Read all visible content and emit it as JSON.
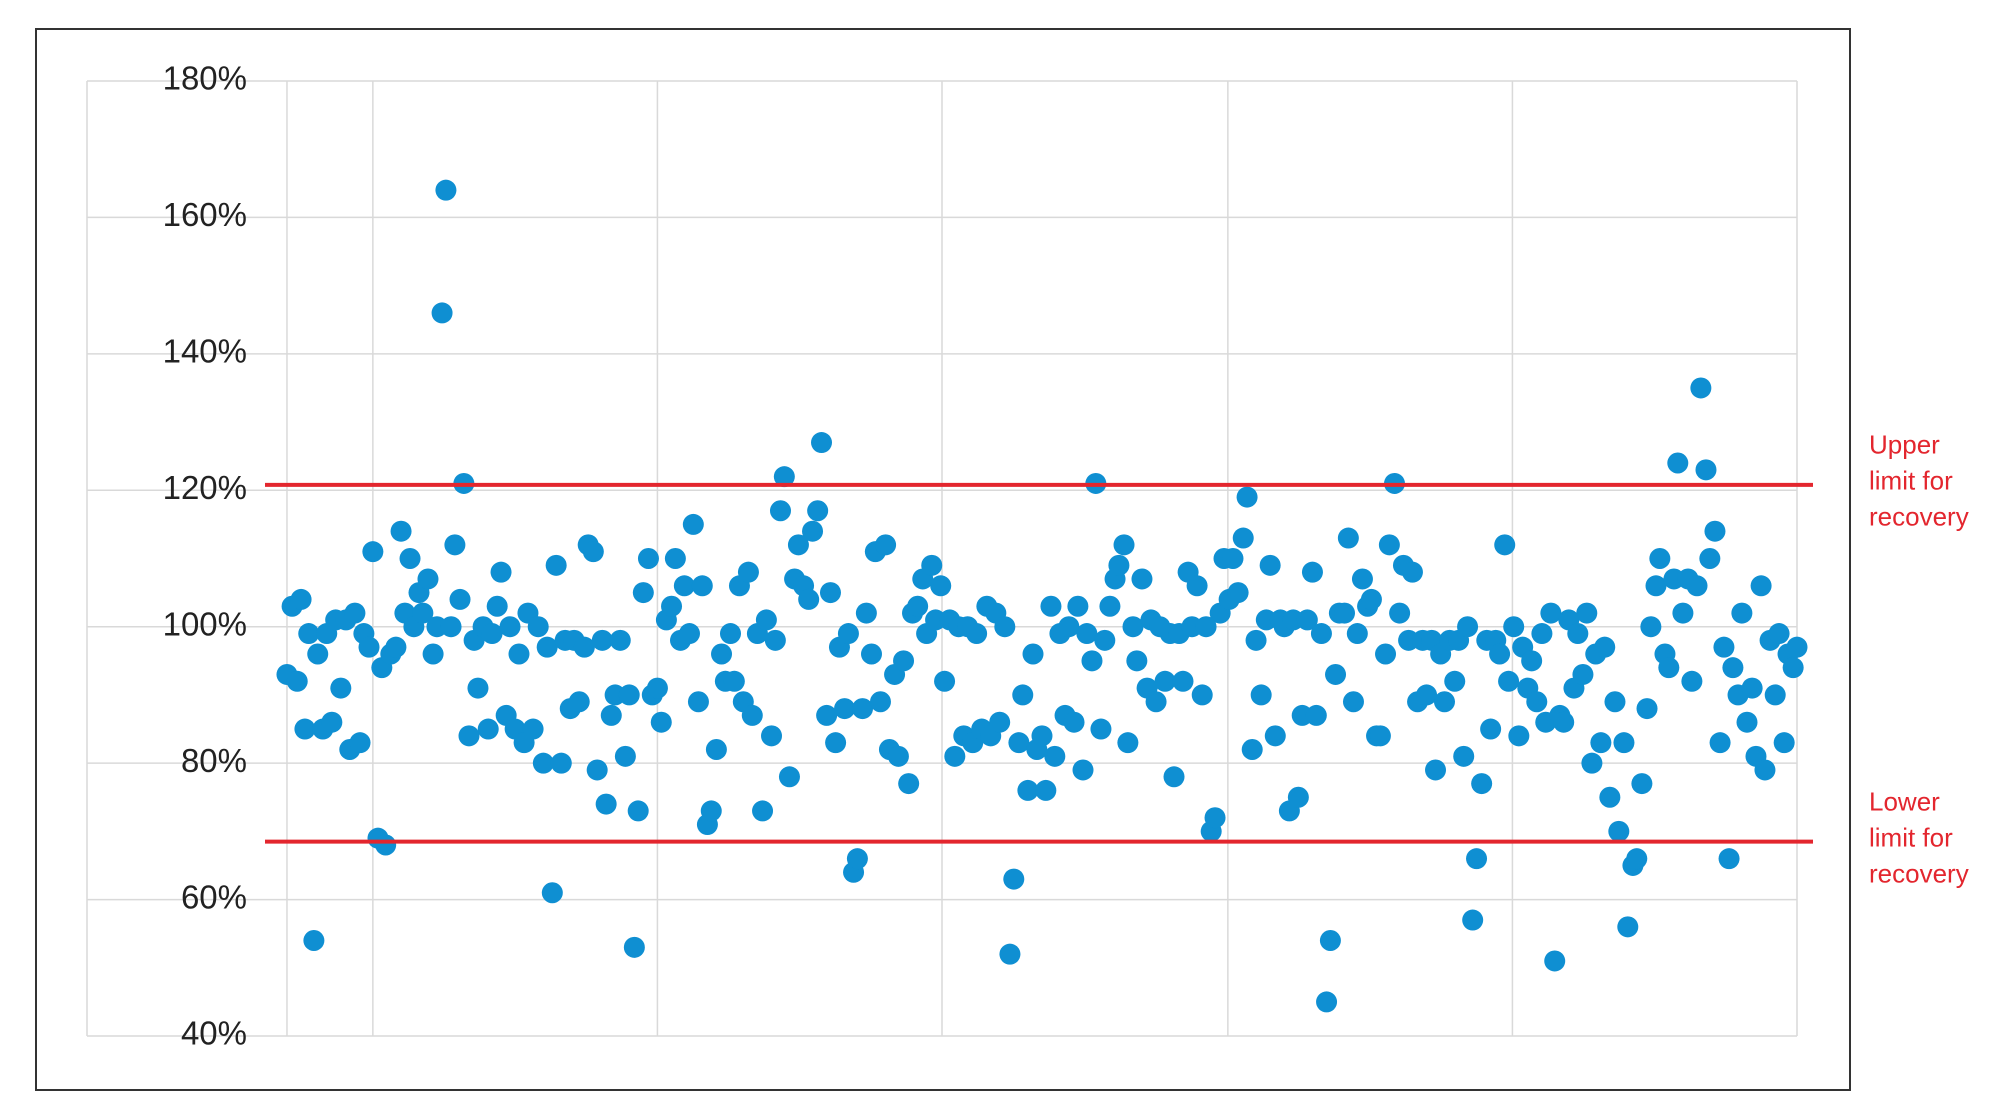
{
  "chart_data": {
    "type": "scatter",
    "series": [
      {
        "color": "#0f8fd2",
        "x": [
          224,
          228,
          232,
          235,
          238,
          241,
          245,
          248,
          252,
          255,
          259,
          262,
          266,
          270,
          273,
          277,
          281,
          284,
          288,
          291,
          295,
          298,
          301,
          305,
          309,
          313,
          316,
          320,
          323,
          327,
          330,
          334,
          338,
          341,
          345,
          348,
          352,
          355,
          359,
          362,
          366,
          370,
          373,
          377,
          381,
          384,
          388,
          391,
          395,
          398,
          402,
          405,
          409,
          412,
          416,
          420,
          424,
          427,
          431,
          434,
          438,
          441,
          445,
          448,
          452,
          456,
          459,
          463,
          466,
          470,
          473,
          477,
          480,
          484,
          488,
          491,
          495,
          498,
          502,
          506,
          509,
          513,
          516,
          520,
          524,
          527,
          531,
          534,
          538,
          541,
          545,
          548,
          552,
          555,
          559,
          563,
          566,
          570,
          573,
          577,
          580,
          584,
          587,
          591,
          595,
          598,
          602,
          605,
          609,
          612,
          616,
          620,
          623,
          627,
          631,
          634,
          638,
          641,
          645,
          648,
          652,
          655,
          659,
          662,
          666,
          669,
          673,
          676,
          680,
          683,
          687,
          691,
          694,
          698,
          701,
          705,
          709,
          712,
          716,
          720,
          723,
          727,
          730,
          734,
          737,
          741,
          745,
          748,
          752,
          755,
          759,
          762,
          766,
          770,
          773,
          777,
          780,
          784,
          788,
          791,
          795,
          798,
          802,
          806,
          809,
          813,
          816,
          820,
          823,
          827,
          831,
          834,
          838,
          841,
          845,
          848,
          852,
          855,
          859,
          862,
          866,
          870,
          873,
          877,
          880,
          884,
          887,
          891,
          895,
          898,
          902,
          905,
          909,
          913,
          916,
          920,
          923,
          927,
          930,
          934,
          938,
          941,
          945,
          948,
          952,
          955,
          959,
          962,
          966,
          970,
          973,
          977,
          980,
          984,
          988,
          991,
          995,
          999,
          1002,
          1006,
          1009,
          1013,
          1016,
          1020,
          1024,
          1027,
          1031,
          1035,
          1038,
          1042,
          1045,
          1049,
          1052,
          1056,
          1059,
          1063,
          1067,
          1070,
          1074,
          1077,
          1081,
          1084,
          1088,
          1092,
          1095,
          1099,
          1102,
          1106,
          1110,
          1113,
          1117,
          1120,
          1124,
          1127,
          1131,
          1135,
          1138,
          1142,
          1145,
          1149,
          1152,
          1156,
          1160,
          1163,
          1167,
          1170,
          1174,
          1177,
          1181,
          1185,
          1188,
          1192,
          1195,
          1199,
          1203,
          1206,
          1210,
          1213,
          1217,
          1220,
          1224,
          1228,
          1231,
          1235,
          1238,
          1242,
          1245,
          1249,
          1252,
          1256,
          1260,
          1263,
          1267,
          1270,
          1274,
          1277,
          1281,
          1285,
          1288,
          1292,
          1295,
          1299,
          1302,
          1306,
          1309,
          1313,
          1317,
          1320,
          1324,
          1327,
          1331,
          1334,
          1338,
          1342,
          1345,
          1349,
          1352,
          1356,
          1359,
          1363,
          1367,
          1370,
          1374,
          1377,
          1381,
          1385,
          1388,
          1392,
          1395,
          1399,
          1402
        ],
        "values": [
          93,
          103,
          92,
          104,
          85,
          99,
          54,
          96,
          85,
          99,
          86,
          101,
          91,
          101,
          82,
          102,
          83,
          99,
          97,
          111,
          69,
          94,
          68,
          96,
          97,
          114,
          102,
          110,
          100,
          105,
          102,
          107,
          96,
          100,
          146,
          164,
          100,
          112,
          104,
          121,
          84,
          98,
          91,
          100,
          85,
          99,
          103,
          108,
          87,
          100,
          85,
          96,
          83,
          102,
          85,
          100,
          80,
          97,
          61,
          109,
          80,
          98,
          88,
          98,
          89,
          97,
          112,
          111,
          79,
          98,
          74,
          87,
          90,
          98,
          81,
          90,
          53,
          73,
          105,
          110,
          90,
          91,
          86,
          101,
          103,
          110,
          98,
          106,
          99,
          115,
          89,
          106,
          71,
          73,
          82,
          96,
          92,
          99,
          92,
          106,
          89,
          108,
          87,
          99,
          73,
          101,
          84,
          98,
          117,
          122,
          78,
          107,
          112,
          106,
          104,
          114,
          117,
          127,
          87,
          105,
          83,
          97,
          88,
          99,
          64,
          66,
          88,
          102,
          96,
          111,
          89,
          112,
          82,
          93,
          81,
          95,
          77,
          102,
          103,
          107,
          99,
          109,
          101,
          106,
          92,
          101,
          81,
          100,
          84,
          100,
          83,
          99,
          85,
          103,
          84,
          102,
          86,
          100,
          52,
          63,
          83,
          90,
          76,
          96,
          82,
          84,
          76,
          103,
          81,
          99,
          87,
          100,
          86,
          103,
          79,
          99,
          95,
          121,
          85,
          98,
          103,
          107,
          109,
          112,
          83,
          100,
          95,
          107,
          91,
          101,
          89,
          100,
          92,
          99,
          78,
          99,
          92,
          108,
          100,
          106,
          90,
          100,
          70,
          72,
          102,
          110,
          104,
          110,
          105,
          113,
          119,
          82,
          98,
          90,
          101,
          109,
          84,
          101,
          100,
          73,
          101,
          75,
          87,
          101,
          108,
          87,
          99,
          45,
          54,
          93,
          102,
          102,
          113,
          89,
          99,
          107,
          103,
          104,
          84,
          84,
          96,
          112,
          121,
          102,
          109,
          98,
          108,
          89,
          98,
          90,
          98,
          79,
          96,
          89,
          98,
          92,
          98,
          81,
          100,
          57,
          66,
          77,
          98,
          85,
          98,
          96,
          112,
          92,
          100,
          84,
          97,
          91,
          95,
          89,
          99,
          86,
          102,
          51,
          87,
          86,
          101,
          91,
          99,
          93,
          102,
          80,
          96,
          83,
          97,
          75,
          89,
          70,
          83,
          56,
          65,
          66,
          77,
          88,
          100,
          106,
          110,
          96,
          94,
          107,
          124,
          102,
          107,
          92,
          106,
          135,
          123,
          110,
          114,
          83,
          97,
          66,
          94,
          90,
          102,
          86,
          91,
          81,
          106,
          79,
          98,
          90,
          99,
          83,
          96,
          94,
          97
        ]
      }
    ],
    "xlim": [
      68,
      1402
    ],
    "xticks": [
      68,
      224,
      291,
      513,
      735,
      958,
      1180,
      1402
    ],
    "ylim": [
      40,
      180
    ],
    "yticks": [
      {
        "value": 40,
        "label": "40%"
      },
      {
        "value": 60,
        "label": "60%"
      },
      {
        "value": 80,
        "label": "80%"
      },
      {
        "value": 100,
        "label": "100%"
      },
      {
        "value": 120,
        "label": "120%"
      },
      {
        "value": 140,
        "label": "140%"
      },
      {
        "value": 160,
        "label": "160%"
      },
      {
        "value": 180,
        "label": "180%"
      }
    ],
    "grid": true,
    "reference_lines": [
      {
        "value": 120.8,
        "color": "#e3262e",
        "label_lines": [
          "Upper",
          "limit for",
          "recovery"
        ]
      },
      {
        "value": 68.5,
        "color": "#e3262e",
        "label_lines": [
          "Lower",
          "limit for",
          "recovery"
        ]
      }
    ]
  }
}
